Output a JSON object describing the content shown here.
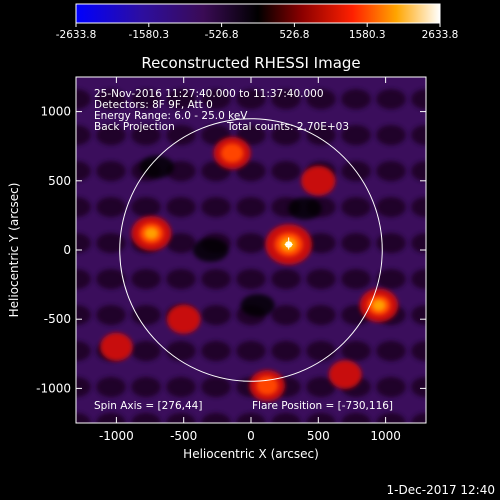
{
  "chart_data": {
    "type": "heatmap",
    "title": "Reconstructed RHESSI Image",
    "xlabel": "Heliocentric X (arcsec)",
    "ylabel": "Heliocentric Y (arcsec)",
    "xlim": [
      -1300,
      1300
    ],
    "ylim": [
      -1250,
      1250
    ],
    "x_ticks": [
      -1000,
      -500,
      0,
      500,
      1000
    ],
    "y_ticks": [
      -1000,
      -500,
      0,
      500,
      1000
    ],
    "colorbar": {
      "range": [
        -2633.8,
        2633.8
      ],
      "tick_labels": [
        "-2633.8",
        "-1580.3",
        "-526.8",
        "526.8",
        "1580.3",
        "2633.8"
      ]
    },
    "solar_limb_radius_arcsec": 975,
    "info_lines": [
      "25-Nov-2016 11:27:40.000 to 11:37:40.000",
      "Detectors: 8F 9F, Att 0",
      "Energy Range: 6.0 - 25.0 keV"
    ],
    "method_label": "Back Projection",
    "total_counts": "Total counts: 2.70E+03",
    "spin_axis": "Spin Axis = [276,44]",
    "flare_position_text": "Flare Position = [-730,116]",
    "peak": {
      "x": 280,
      "y": 40
    },
    "blobs": [
      {
        "x": 280,
        "y": 40,
        "value": 2633.8
      },
      {
        "x": -740,
        "y": 120,
        "value": 1700
      },
      {
        "x": -140,
        "y": 700,
        "value": 1300
      },
      {
        "x": 950,
        "y": -400,
        "value": 1500
      },
      {
        "x": 120,
        "y": -980,
        "value": 1100
      },
      {
        "x": 500,
        "y": 500,
        "value": 900
      },
      {
        "x": -500,
        "y": -500,
        "value": 800
      },
      {
        "x": 700,
        "y": -900,
        "value": 700
      },
      {
        "x": -1000,
        "y": -700,
        "value": 650
      },
      {
        "x": -300,
        "y": 0,
        "value": -900
      },
      {
        "x": 50,
        "y": -400,
        "value": -700
      },
      {
        "x": 400,
        "y": 300,
        "value": -600
      },
      {
        "x": -700,
        "y": 600,
        "value": -700
      }
    ],
    "grid": false
  },
  "footer": {
    "date": "1-Dec-2017 12:40"
  }
}
